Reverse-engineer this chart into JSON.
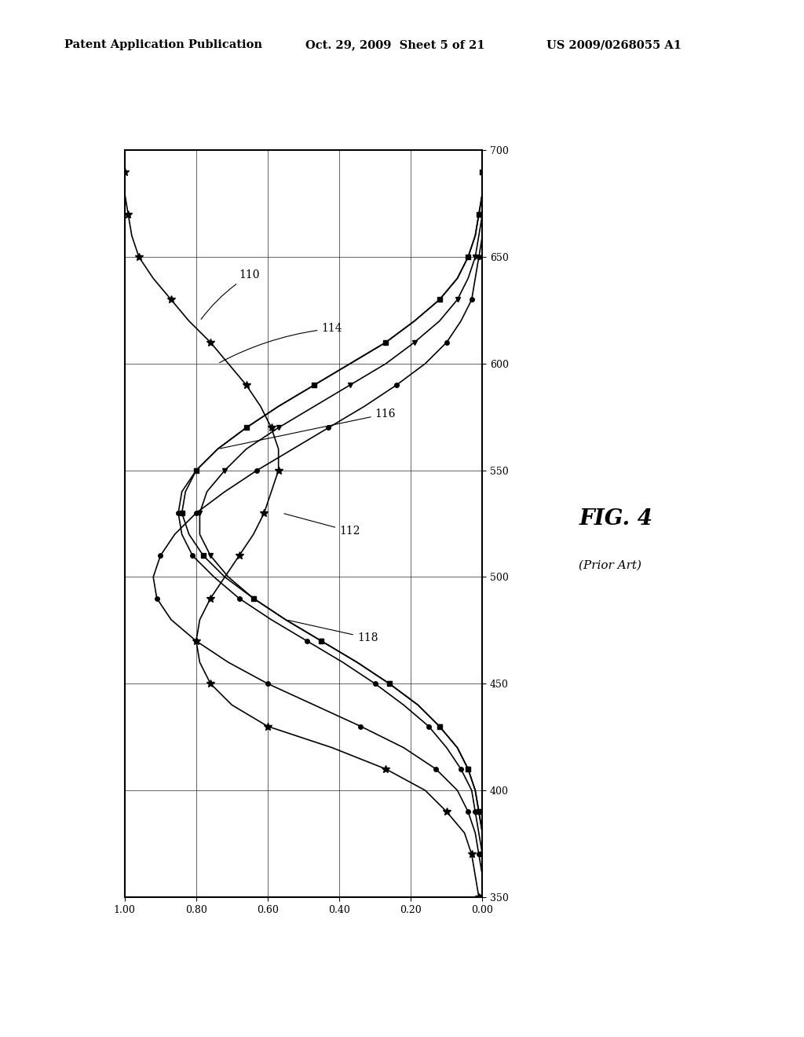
{
  "title_left": "Patent Application Publication",
  "title_center": "Oct. 29, 2009  Sheet 5 of 21",
  "title_right": "US 2009/0268055 A1",
  "fig_label": "FIG. 4",
  "fig_sublabel": "(Prior Art)",
  "background_color": "#ffffff",
  "curve110_wav": [
    350,
    360,
    370,
    380,
    390,
    400,
    410,
    420,
    430,
    440,
    450,
    460,
    470,
    480,
    490,
    500,
    510,
    520,
    530,
    540,
    550,
    560,
    570,
    580,
    590,
    600,
    610,
    620,
    630,
    640,
    650,
    660,
    670,
    680,
    690,
    700
  ],
  "curve110_val": [
    0.01,
    0.02,
    0.03,
    0.05,
    0.1,
    0.16,
    0.27,
    0.42,
    0.6,
    0.7,
    0.76,
    0.79,
    0.8,
    0.79,
    0.76,
    0.72,
    0.68,
    0.64,
    0.61,
    0.59,
    0.57,
    0.57,
    0.59,
    0.62,
    0.66,
    0.71,
    0.76,
    0.82,
    0.87,
    0.92,
    0.96,
    0.98,
    0.99,
    1.0,
    1.0,
    1.0
  ],
  "curve112_wav": [
    350,
    360,
    370,
    380,
    390,
    400,
    410,
    420,
    430,
    440,
    450,
    460,
    470,
    480,
    490,
    500,
    510,
    520,
    530,
    540,
    550,
    560,
    570,
    580,
    590,
    600,
    610,
    620,
    630,
    640,
    650,
    660,
    670,
    680,
    690,
    700
  ],
  "curve112_val": [
    0.0,
    0.0,
    0.01,
    0.02,
    0.04,
    0.07,
    0.13,
    0.22,
    0.34,
    0.47,
    0.6,
    0.71,
    0.8,
    0.87,
    0.91,
    0.92,
    0.9,
    0.86,
    0.8,
    0.72,
    0.63,
    0.53,
    0.43,
    0.33,
    0.24,
    0.16,
    0.1,
    0.06,
    0.03,
    0.02,
    0.01,
    0.0,
    0.0,
    0.0,
    0.0,
    0.0
  ],
  "curve114_wav": [
    350,
    360,
    370,
    380,
    390,
    400,
    410,
    420,
    430,
    440,
    450,
    460,
    470,
    480,
    490,
    500,
    510,
    520,
    530,
    540,
    550,
    560,
    570,
    580,
    590,
    600,
    610,
    620,
    630,
    640,
    650,
    660,
    670,
    680,
    690,
    700
  ],
  "curve114_val": [
    0.0,
    0.0,
    0.0,
    0.01,
    0.02,
    0.03,
    0.06,
    0.1,
    0.15,
    0.22,
    0.3,
    0.39,
    0.49,
    0.59,
    0.68,
    0.75,
    0.81,
    0.84,
    0.85,
    0.84,
    0.8,
    0.74,
    0.66,
    0.57,
    0.47,
    0.37,
    0.27,
    0.19,
    0.12,
    0.07,
    0.04,
    0.02,
    0.01,
    0.0,
    0.0,
    0.0
  ],
  "curve116_wav": [
    350,
    360,
    370,
    380,
    390,
    400,
    410,
    420,
    430,
    440,
    450,
    460,
    470,
    480,
    490,
    500,
    510,
    520,
    530,
    540,
    550,
    560,
    570,
    580,
    590,
    600,
    610,
    620,
    630,
    640,
    650,
    660,
    670,
    680,
    690,
    700
  ],
  "curve116_val": [
    0.0,
    0.0,
    0.0,
    0.0,
    0.01,
    0.02,
    0.04,
    0.07,
    0.12,
    0.18,
    0.26,
    0.35,
    0.45,
    0.55,
    0.64,
    0.72,
    0.78,
    0.82,
    0.84,
    0.83,
    0.8,
    0.74,
    0.66,
    0.57,
    0.47,
    0.37,
    0.27,
    0.19,
    0.12,
    0.07,
    0.04,
    0.02,
    0.01,
    0.0,
    0.0,
    0.0
  ],
  "curve118_wav": [
    350,
    360,
    370,
    380,
    390,
    400,
    410,
    420,
    430,
    440,
    450,
    460,
    470,
    480,
    490,
    500,
    510,
    520,
    530,
    540,
    550,
    560,
    570,
    580,
    590,
    600,
    610,
    620,
    630,
    640,
    650,
    660,
    670,
    680,
    690,
    700
  ],
  "curve118_val": [
    0.0,
    0.0,
    0.0,
    0.0,
    0.01,
    0.02,
    0.04,
    0.07,
    0.12,
    0.18,
    0.26,
    0.35,
    0.45,
    0.55,
    0.64,
    0.71,
    0.76,
    0.79,
    0.79,
    0.77,
    0.72,
    0.66,
    0.57,
    0.47,
    0.37,
    0.27,
    0.19,
    0.12,
    0.07,
    0.04,
    0.02,
    0.01,
    0.0,
    0.0,
    0.0,
    0.0
  ]
}
